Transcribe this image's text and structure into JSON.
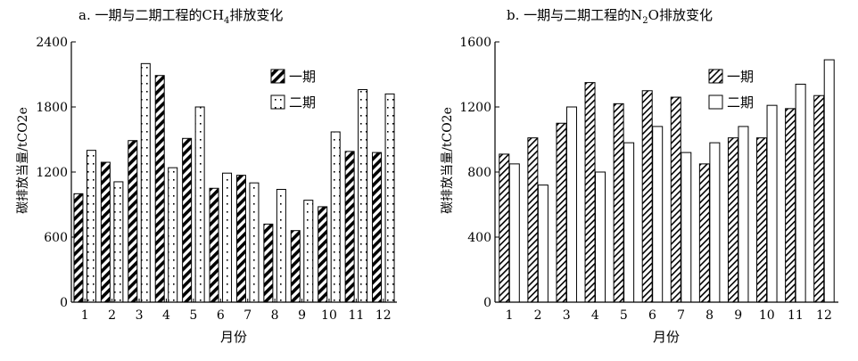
{
  "chart_data": [
    {
      "type": "bar",
      "title_prefix": "a. 一期与二期工程的CH",
      "title_sub": "4",
      "title_suffix": "排放变化",
      "xlabel": "月份",
      "ylabel": "碳排放当量/tCO2e",
      "ylim": [
        0,
        2400
      ],
      "yticks": [
        0,
        600,
        1200,
        1800,
        2400
      ],
      "categories": [
        "1",
        "2",
        "3",
        "4",
        "5",
        "6",
        "7",
        "8",
        "9",
        "10",
        "11",
        "12"
      ],
      "legend_position": "top-right",
      "series": [
        {
          "name": "一期",
          "pattern": "p-diag-bold",
          "values": [
            1000,
            1290,
            1490,
            2090,
            1510,
            1050,
            1170,
            720,
            660,
            880,
            1390,
            1380
          ]
        },
        {
          "name": "二期",
          "pattern": "p-dots",
          "values": [
            1400,
            1110,
            2200,
            1240,
            1800,
            1190,
            1100,
            1040,
            940,
            1570,
            1960,
            1920
          ]
        }
      ]
    },
    {
      "type": "bar",
      "title_prefix": "b. 一期与二期工程的N",
      "title_sub": "2",
      "title_suffix": "O排放变化",
      "xlabel": "月份",
      "ylabel": "碳排放当量/tCO2e",
      "ylim": [
        0,
        1600
      ],
      "yticks": [
        0,
        400,
        800,
        1200,
        1600
      ],
      "categories": [
        "1",
        "2",
        "3",
        "4",
        "5",
        "6",
        "7",
        "8",
        "9",
        "10",
        "11",
        "12"
      ],
      "legend_position": "top-right",
      "series": [
        {
          "name": "一期",
          "pattern": "p-hatch",
          "values": [
            910,
            1010,
            1100,
            1350,
            1220,
            1300,
            1260,
            850,
            1010,
            1010,
            1190,
            1270
          ]
        },
        {
          "name": "二期",
          "pattern": "none",
          "values": [
            850,
            720,
            1200,
            800,
            980,
            1080,
            920,
            980,
            1080,
            1210,
            1340,
            1490
          ]
        }
      ]
    }
  ]
}
